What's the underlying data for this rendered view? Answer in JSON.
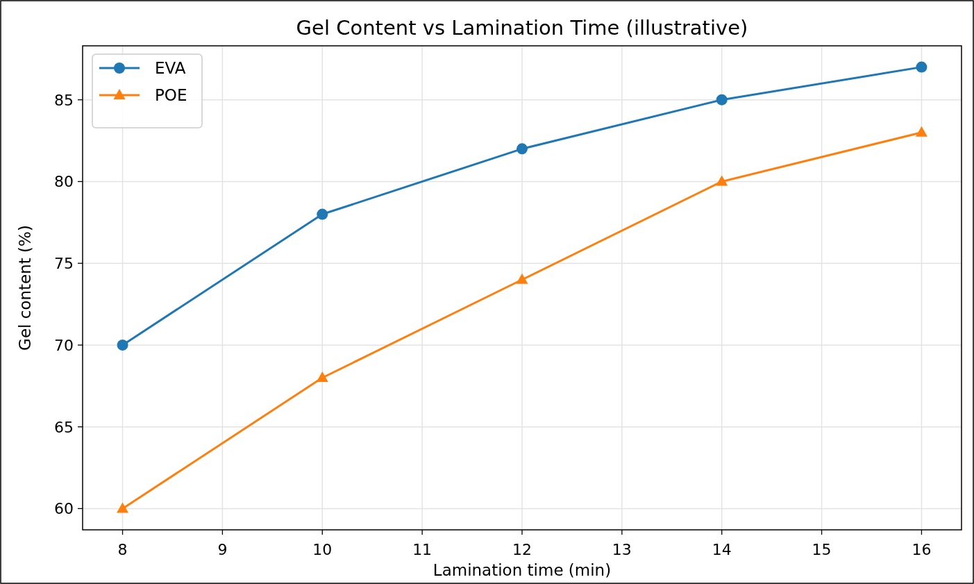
{
  "chart_data": {
    "type": "line",
    "title": "Gel Content vs Lamination Time (illustrative)",
    "xlabel": "Lamination time (min)",
    "ylabel": "Gel content (%)",
    "x": [
      8,
      10,
      12,
      14,
      16
    ],
    "series": [
      {
        "name": "EVA",
        "color": "#1f77b4",
        "values": [
          70,
          78,
          82,
          85,
          87
        ],
        "marker": "circle"
      },
      {
        "name": "POE",
        "color": "#ff7f0e",
        "values": [
          60,
          68,
          74,
          80,
          83
        ],
        "marker": "triangle"
      }
    ],
    "xlim": [
      7.6,
      16.4
    ],
    "xticks": [
      8,
      9,
      10,
      11,
      12,
      13,
      14,
      15,
      16
    ],
    "ylim": [
      58.7,
      88.3
    ],
    "yticks": [
      60,
      65,
      70,
      75,
      80,
      85
    ],
    "grid": true,
    "legend": "top left",
    "line_style": "solid"
  }
}
